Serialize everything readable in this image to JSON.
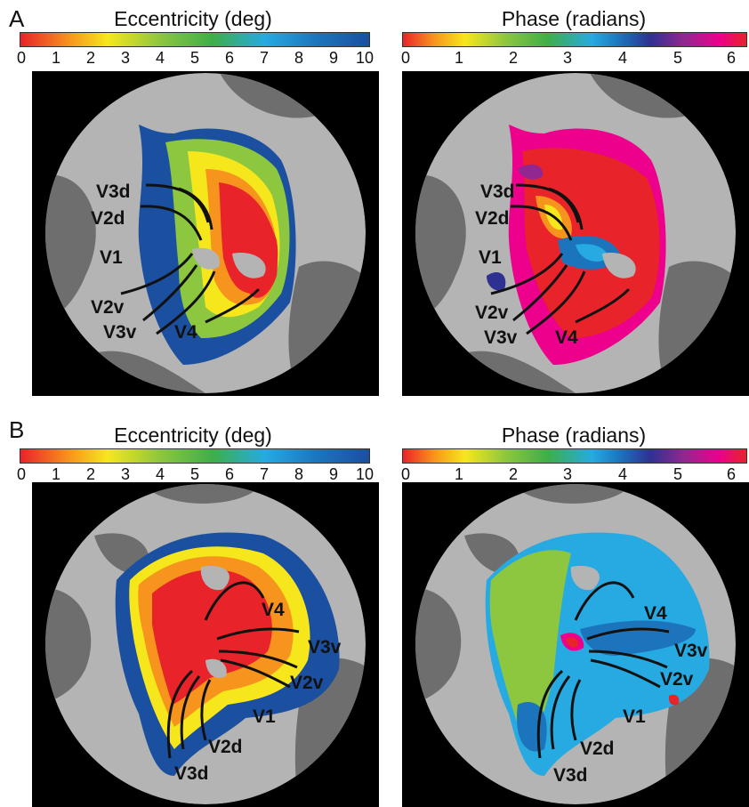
{
  "panels": [
    {
      "label": "A",
      "ecc": {
        "title": "Eccentricity (deg)",
        "ticks": [
          "0",
          "1",
          "2",
          "3",
          "4",
          "5",
          "6",
          "7",
          "8",
          "9",
          "10"
        ]
      },
      "phase": {
        "title": "Phase (radians)",
        "ticks": [
          "0",
          "1",
          "2",
          "3",
          "4",
          "5",
          "6"
        ]
      },
      "areas": [
        "V3d",
        "V2d",
        "V1",
        "V2v",
        "V3v",
        "V4"
      ]
    },
    {
      "label": "B",
      "ecc": {
        "title": "Eccentricity (deg)",
        "ticks": [
          "0",
          "1",
          "2",
          "3",
          "4",
          "5",
          "6",
          "7",
          "8",
          "9",
          "10"
        ]
      },
      "phase": {
        "title": "Phase (radians)",
        "ticks": [
          "0",
          "1",
          "2",
          "3",
          "4",
          "5",
          "6"
        ]
      },
      "areas": [
        "V4",
        "V3v",
        "V2v",
        "V1",
        "V2d",
        "V3d"
      ]
    }
  ],
  "colors": {
    "eccentricity_scale": [
      "#e8232a",
      "#f7941d",
      "#f6e71d",
      "#8dc63f",
      "#3fae49",
      "#27aae1",
      "#1c75bc",
      "#1b4fa0"
    ],
    "phase_scale": [
      "#e8232a",
      "#f7941d",
      "#f6e71d",
      "#8dc63f",
      "#3fae49",
      "#27aae1",
      "#1c75bc",
      "#2e3192",
      "#92278f",
      "#ec008c",
      "#e8232a"
    ],
    "background": "#000000",
    "cortex_light": "#b4b4b4",
    "cortex_dark": "#6e6e6e"
  }
}
